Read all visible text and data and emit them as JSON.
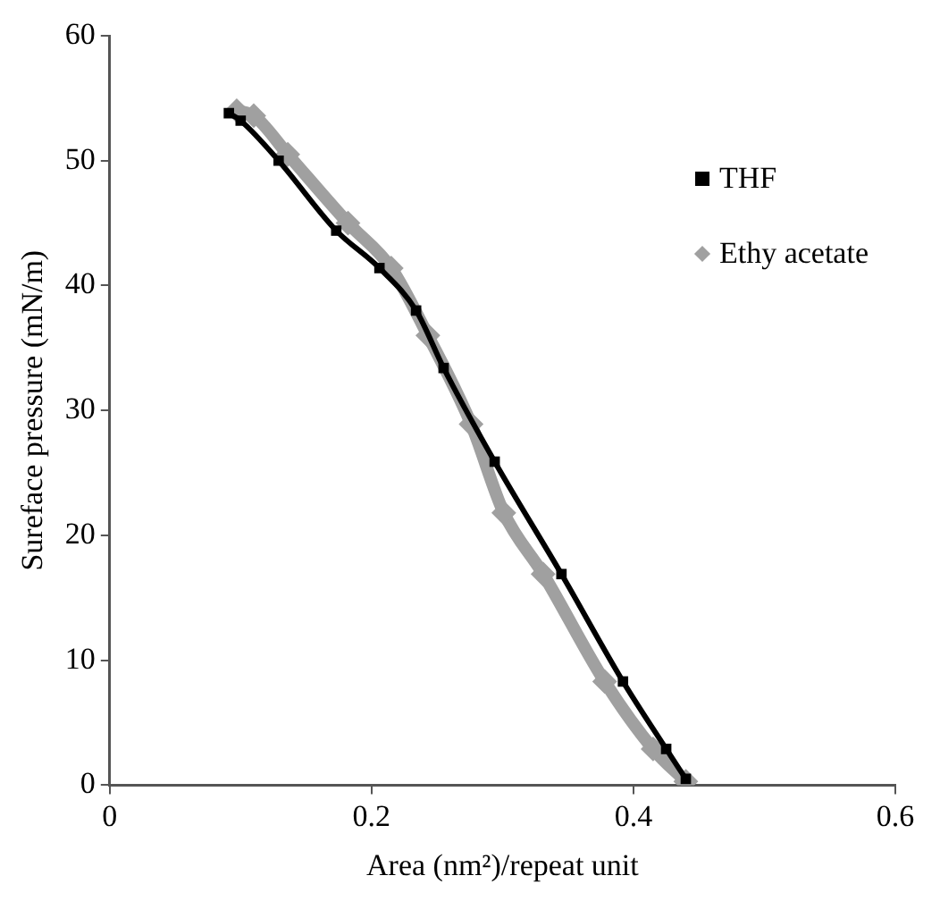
{
  "chart_data": {
    "type": "line",
    "xlabel": "Area (nm²)/repeat unit",
    "ylabel": "Sureface pressure (mN/m)",
    "xlim": [
      0,
      0.6
    ],
    "xticks": [
      0,
      0.2,
      0.4,
      0.6
    ],
    "ylim": [
      0,
      60
    ],
    "yticks": [
      0,
      10,
      20,
      30,
      40,
      50,
      60
    ],
    "grid": false,
    "legend": "top right",
    "series": [
      {
        "name": "THF",
        "color": "#000000",
        "marker": "square",
        "x": [
          0.091,
          0.1,
          0.129,
          0.173,
          0.206,
          0.234,
          0.255,
          0.294,
          0.345,
          0.392,
          0.425,
          0.44
        ],
        "values": [
          53.8,
          53.2,
          50,
          44.4,
          41.4,
          38,
          33.4,
          25.9,
          16.9,
          8.3,
          2.9,
          0.5
        ]
      },
      {
        "name": "Ethy acetate",
        "color": "#a0a0a0",
        "marker": "diamond",
        "x": [
          0.097,
          0.11,
          0.136,
          0.182,
          0.215,
          0.243,
          0.276,
          0.301,
          0.331,
          0.378,
          0.415,
          0.44
        ],
        "values": [
          54,
          53.6,
          50.5,
          45,
          41.4,
          36,
          28.9,
          21.8,
          16.9,
          8.3,
          2.9,
          0.3
        ]
      }
    ]
  }
}
